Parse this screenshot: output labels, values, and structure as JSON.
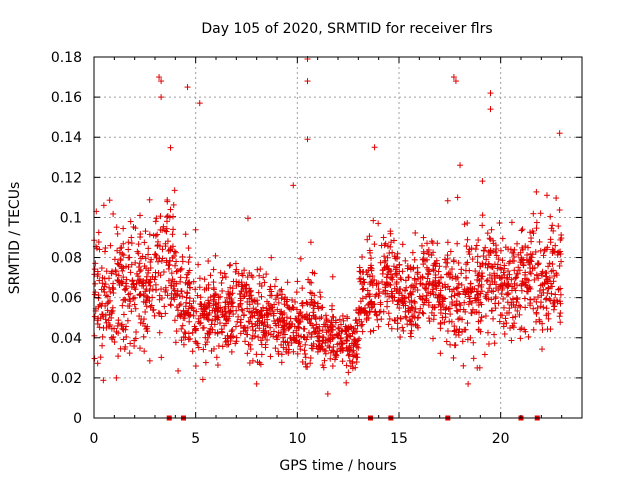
{
  "chart_data": {
    "type": "scatter",
    "title": "Day 105 of 2020, SRMTID for receiver flrs",
    "xlabel": "GPS time / hours",
    "ylabel": "SRMTID / TECUs",
    "xlim": [
      0,
      24
    ],
    "ylim": [
      0,
      0.18
    ],
    "x_ticks": [
      0,
      5,
      10,
      15,
      20
    ],
    "y_ticks": [
      0,
      0.02,
      0.04,
      0.06,
      0.08,
      0.1,
      0.12,
      0.14,
      0.16,
      0.18
    ],
    "x_tick_labels": [
      "0",
      "5",
      "10",
      "15",
      "20"
    ],
    "y_tick_labels": [
      "0",
      "0.02",
      "0.04",
      "0.06",
      "0.08",
      "0.1",
      "0.12",
      "0.14",
      "0.16",
      "0.18"
    ],
    "grid": true,
    "marker": "+",
    "color": "#e00000",
    "zero_value_times": [
      3.7,
      4.4,
      13.6,
      14.6,
      17.4,
      21.0,
      21.8
    ],
    "notable_points": [
      {
        "x": 3.2,
        "y": 0.17
      },
      {
        "x": 3.3,
        "y": 0.168
      },
      {
        "x": 3.3,
        "y": 0.16
      },
      {
        "x": 4.6,
        "y": 0.165
      },
      {
        "x": 5.2,
        "y": 0.157
      },
      {
        "x": 10.5,
        "y": 0.179
      },
      {
        "x": 10.5,
        "y": 0.168
      },
      {
        "x": 10.5,
        "y": 0.139
      },
      {
        "x": 9.8,
        "y": 0.116
      },
      {
        "x": 13.8,
        "y": 0.135
      },
      {
        "x": 17.7,
        "y": 0.17
      },
      {
        "x": 17.8,
        "y": 0.168
      },
      {
        "x": 19.5,
        "y": 0.162
      },
      {
        "x": 19.5,
        "y": 0.154
      },
      {
        "x": 22.9,
        "y": 0.142
      },
      {
        "x": 11.5,
        "y": 0.012
      },
      {
        "x": 1.1,
        "y": 0.02
      },
      {
        "x": 18.4,
        "y": 0.017
      },
      {
        "x": 8.0,
        "y": 0.017
      }
    ],
    "density_profile": [
      {
        "x0": 0.0,
        "x1": 1.0,
        "center": 0.06,
        "spread": 0.028,
        "n": 95
      },
      {
        "x0": 1.0,
        "x1": 2.0,
        "center": 0.065,
        "spread": 0.03,
        "n": 95
      },
      {
        "x0": 2.0,
        "x1": 3.0,
        "center": 0.065,
        "spread": 0.028,
        "n": 95
      },
      {
        "x0": 3.0,
        "x1": 4.0,
        "center": 0.075,
        "spread": 0.03,
        "n": 95
      },
      {
        "x0": 4.0,
        "x1": 5.0,
        "center": 0.058,
        "spread": 0.026,
        "n": 95
      },
      {
        "x0": 5.0,
        "x1": 6.0,
        "center": 0.05,
        "spread": 0.02,
        "n": 95
      },
      {
        "x0": 6.0,
        "x1": 7.0,
        "center": 0.052,
        "spread": 0.02,
        "n": 95
      },
      {
        "x0": 7.0,
        "x1": 8.0,
        "center": 0.055,
        "spread": 0.02,
        "n": 95
      },
      {
        "x0": 8.0,
        "x1": 9.0,
        "center": 0.052,
        "spread": 0.02,
        "n": 95
      },
      {
        "x0": 9.0,
        "x1": 10.0,
        "center": 0.047,
        "spread": 0.018,
        "n": 95
      },
      {
        "x0": 10.0,
        "x1": 11.0,
        "center": 0.047,
        "spread": 0.02,
        "n": 95
      },
      {
        "x0": 11.0,
        "x1": 12.0,
        "center": 0.04,
        "spread": 0.015,
        "n": 95
      },
      {
        "x0": 12.0,
        "x1": 13.0,
        "center": 0.038,
        "spread": 0.015,
        "n": 95
      },
      {
        "x0": 13.0,
        "x1": 14.0,
        "center": 0.062,
        "spread": 0.022,
        "n": 95
      },
      {
        "x0": 14.0,
        "x1": 15.0,
        "center": 0.068,
        "spread": 0.02,
        "n": 95
      },
      {
        "x0": 15.0,
        "x1": 16.0,
        "center": 0.06,
        "spread": 0.022,
        "n": 95
      },
      {
        "x0": 16.0,
        "x1": 17.0,
        "center": 0.068,
        "spread": 0.022,
        "n": 95
      },
      {
        "x0": 17.0,
        "x1": 18.0,
        "center": 0.058,
        "spread": 0.024,
        "n": 95
      },
      {
        "x0": 18.0,
        "x1": 19.0,
        "center": 0.06,
        "spread": 0.026,
        "n": 95
      },
      {
        "x0": 19.0,
        "x1": 20.0,
        "center": 0.065,
        "spread": 0.026,
        "n": 95
      },
      {
        "x0": 20.0,
        "x1": 21.0,
        "center": 0.065,
        "spread": 0.024,
        "n": 95
      },
      {
        "x0": 21.0,
        "x1": 22.0,
        "center": 0.07,
        "spread": 0.024,
        "n": 95
      },
      {
        "x0": 22.0,
        "x1": 23.0,
        "center": 0.068,
        "spread": 0.026,
        "n": 95
      }
    ]
  }
}
